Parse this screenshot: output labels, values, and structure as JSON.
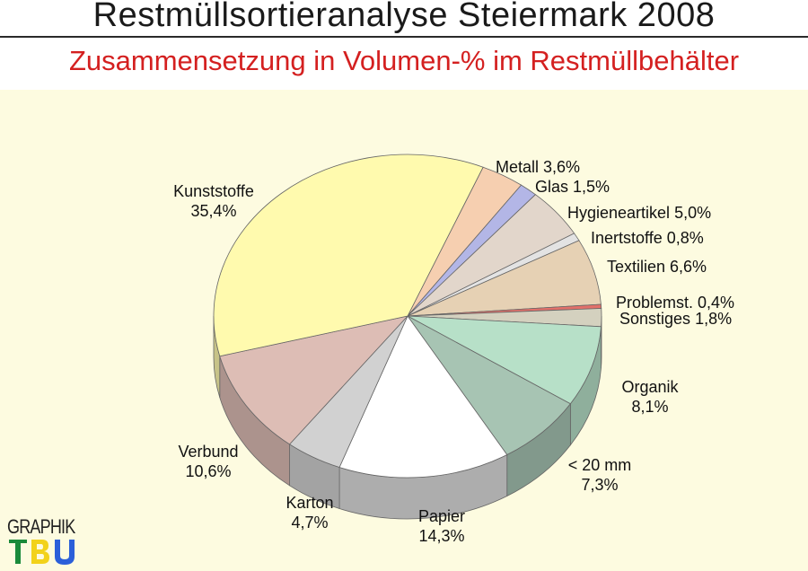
{
  "header": {
    "title": "Restmüllsortieranalyse Steiermark 2008",
    "subtitle": "Zusammensetzung  in Volumen-% im Restmüllbehälter"
  },
  "logo": {
    "top_text": "GRAPHIK",
    "mark_text": "TBU"
  },
  "chart_data": {
    "type": "pie",
    "title": "Restmüllsortieranalyse Steiermark 2008",
    "subtitle": "Zusammensetzung  in Volumen-% im Restmüllbehälter",
    "unit": "Volumen-%",
    "style": "3d-exploded",
    "slices": [
      {
        "name": "Metall",
        "value": 3.6,
        "label_value": "3,6%",
        "color": "#f6cfb0"
      },
      {
        "name": "Glas",
        "value": 1.5,
        "label_value": "1,5%",
        "color": "#b3b6e6"
      },
      {
        "name": "Hygieneartikel",
        "value": 5.0,
        "label_value": "5,0%",
        "color": "#e2d6cb"
      },
      {
        "name": "Inertstoffe",
        "value": 0.8,
        "label_value": "0,8%",
        "color": "#e3e3e3"
      },
      {
        "name": "Textilien",
        "value": 6.6,
        "label_value": "6,6%",
        "color": "#e6d1b4"
      },
      {
        "name": "Problemst.",
        "value": 0.4,
        "label_value": "0,4%",
        "color": "#e2706a"
      },
      {
        "name": "Sonstiges",
        "value": 1.8,
        "label_value": "1,8%",
        "color": "#d4d1bf"
      },
      {
        "name": "Organik",
        "value": 8.1,
        "label_value": "8,1%",
        "color": "#b7e0c8"
      },
      {
        "name": "< 20 mm",
        "value": 7.3,
        "label_value": "7,3%",
        "color": "#a7c4b3"
      },
      {
        "name": "Papier",
        "value": 14.3,
        "label_value": "14,3%",
        "color": "#ffffff"
      },
      {
        "name": "Karton",
        "value": 4.7,
        "label_value": "4,7%",
        "color": "#d1d1d1"
      },
      {
        "name": "Verbund",
        "value": 10.6,
        "label_value": "10,6%",
        "color": "#ddbdb5"
      },
      {
        "name": "Kunststoffe",
        "value": 35.4,
        "label_value": "35,4%",
        "color": "#fffaae"
      }
    ]
  }
}
